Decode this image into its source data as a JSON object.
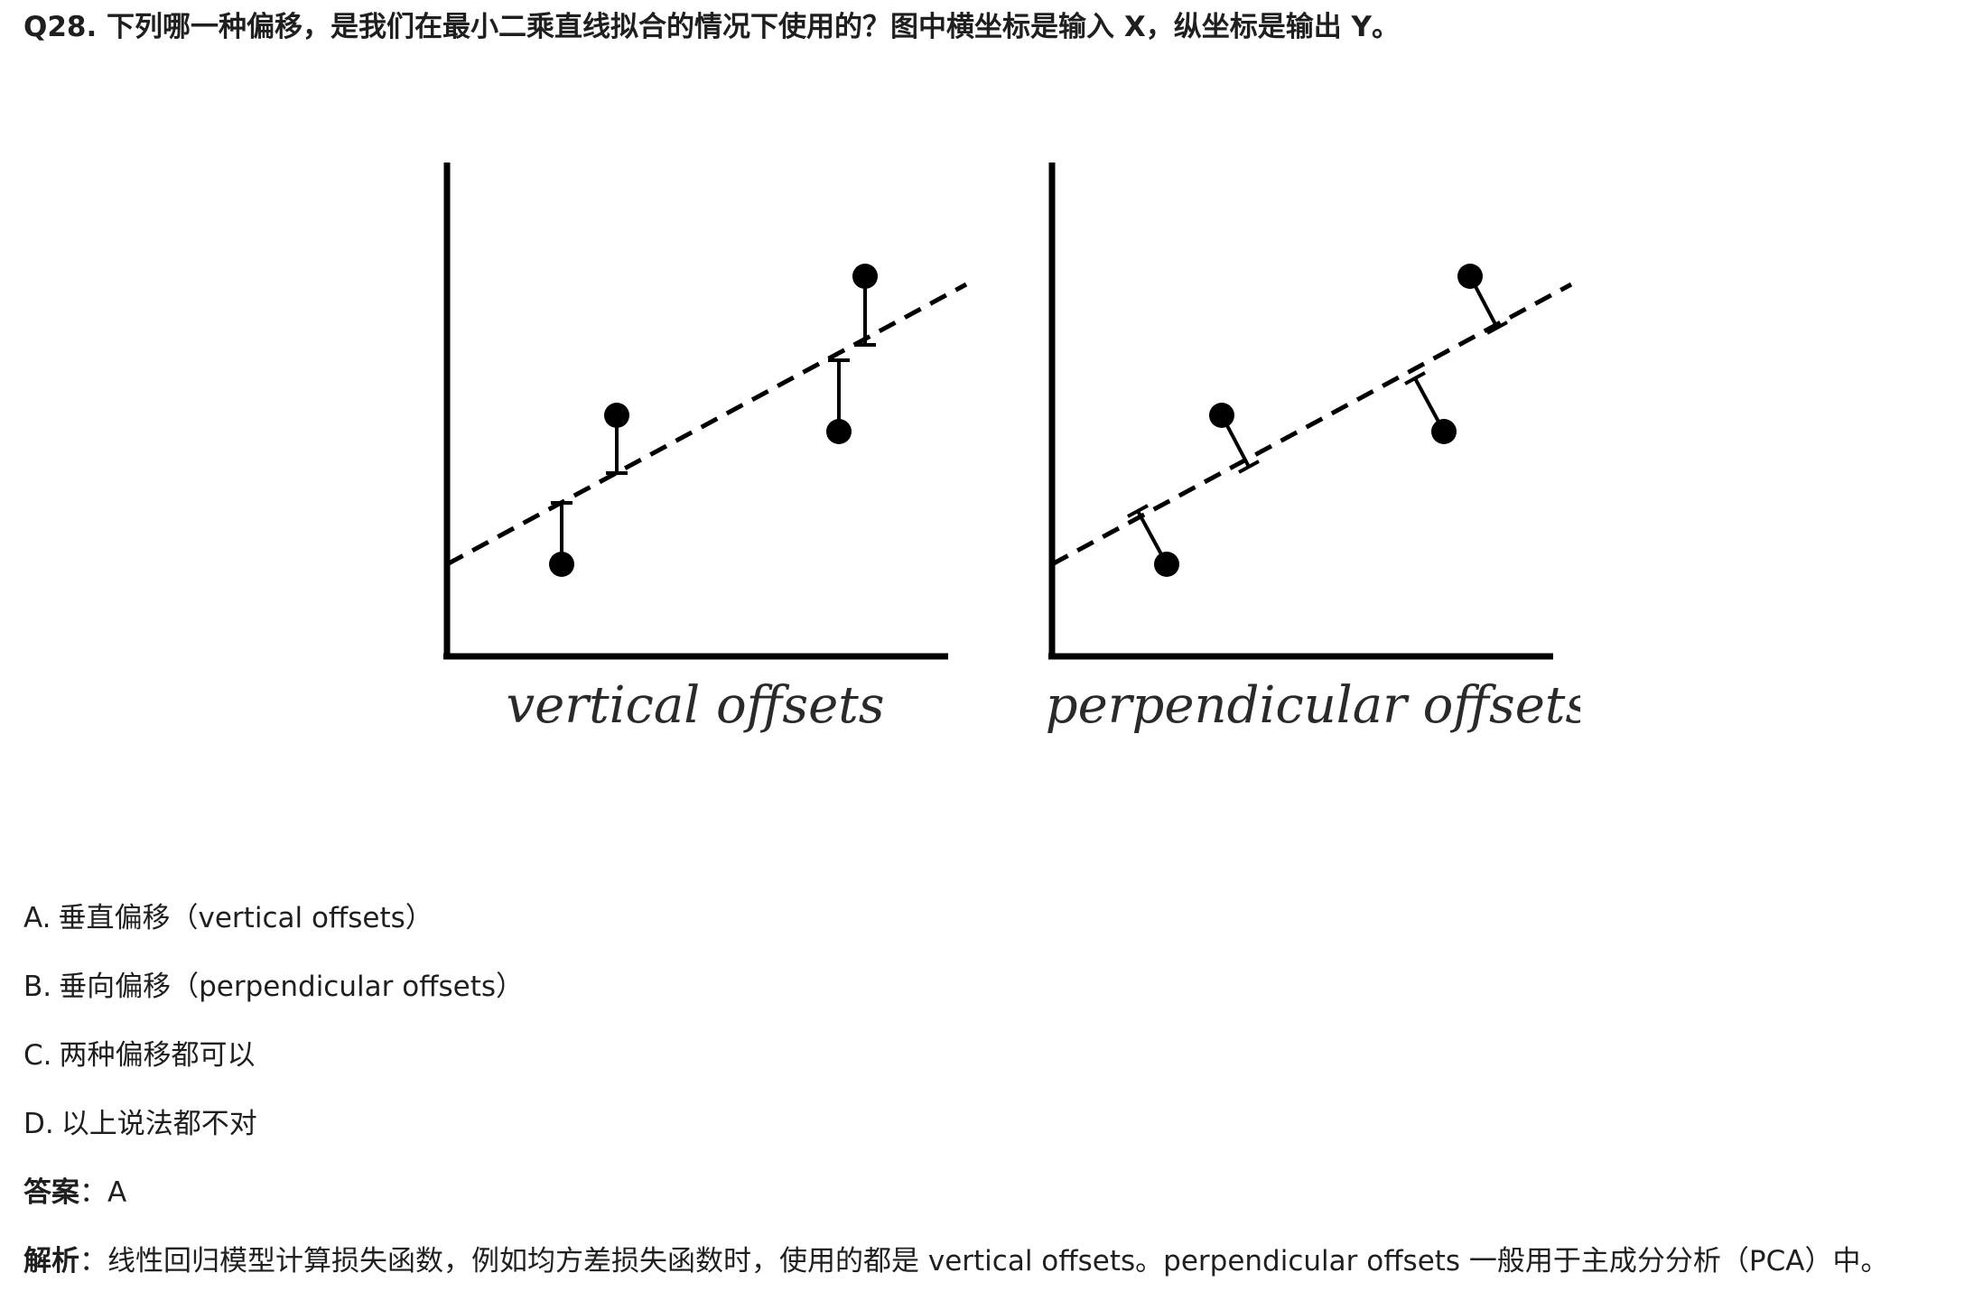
{
  "question": {
    "text": "Q28. 下列哪一种偏移，是我们在最小二乘直线拟合的情况下使用的？图中横坐标是输入 X，纵坐标是输出 Y。"
  },
  "figure": {
    "left_caption": "vertical offsets",
    "right_caption": "perpendicular offsets"
  },
  "options": [
    {
      "letter": "A.",
      "text": "垂直偏移（vertical offsets）"
    },
    {
      "letter": "B.",
      "text": "垂向偏移（perpendicular offsets）"
    },
    {
      "letter": "C.",
      "text": "两种偏移都可以"
    },
    {
      "letter": "D.",
      "text": "以上说法都不对"
    }
  ],
  "answer": {
    "label": "答案",
    "separator": "：",
    "value": "A"
  },
  "analysis": {
    "label": "解析",
    "separator": "：",
    "text": "线性回归模型计算损失函数，例如均方差损失函数时，使用的都是 vertical offsets。perpendicular offsets 一般用于主成分分析（PCA）中。"
  }
}
